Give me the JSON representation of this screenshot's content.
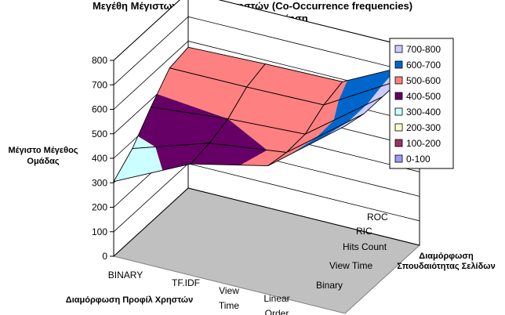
{
  "chart_data": {
    "type": "surface",
    "title": "Μεγέθη Μέγιστων Ομάδων Χρηστών (Co-Occurrence frequencies)",
    "subtitle": "Ασαφής Ομαδοποίηση",
    "zlabel_lines": [
      "Μέγιστο Μέγεθος",
      "Ομάδας"
    ],
    "xlabel": "Διαμόρφωση Προφίλ Χρηστών",
    "ylabel_lines": [
      "Διαμόρφωση",
      "Σπουδαιότητας Σελίδων"
    ],
    "x_categories": [
      [
        "BINARY"
      ],
      [
        "TF.IDF"
      ],
      [
        "View",
        "Time"
      ],
      [
        "Linear",
        "Order"
      ]
    ],
    "y_categories": [
      "Binary",
      "View Time",
      "Hits Count",
      "RIC",
      "ROC"
    ],
    "z_ticks": [
      "0",
      "100",
      "200",
      "300",
      "400",
      "500",
      "600",
      "700",
      "800"
    ],
    "zlim": [
      0,
      800
    ],
    "legend_position": "right",
    "legend": [
      {
        "label": "700-800",
        "color": "#ccccff"
      },
      {
        "label": "600-700",
        "color": "#0066cc"
      },
      {
        "label": "500-600",
        "color": "#ff8080"
      },
      {
        "label": "400-500",
        "color": "#660066"
      },
      {
        "label": "300-400",
        "color": "#ccffff"
      },
      {
        "label": "200-300",
        "color": "#ffffcc"
      },
      {
        "label": "100-200",
        "color": "#993366"
      },
      {
        "label": "0-100",
        "color": "#9999ff"
      }
    ],
    "values": [
      [
        305,
        370,
        470,
        560,
        575
      ],
      [
        455,
        470,
        500,
        560,
        585
      ],
      [
        525,
        510,
        515,
        565,
        590
      ],
      [
        765,
        745,
        745,
        745,
        745
      ]
    ]
  }
}
